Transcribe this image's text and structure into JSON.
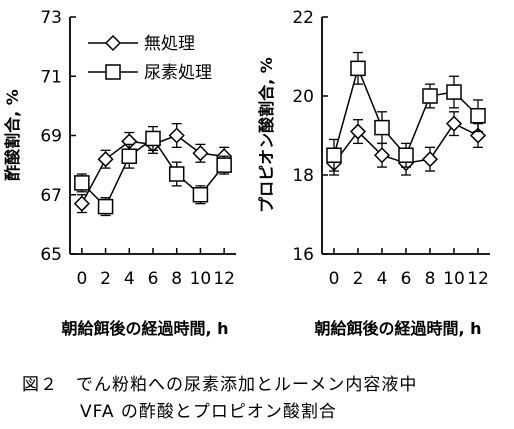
{
  "caption": {
    "line1": "図２　でん粉粕への尿素添加とルーメン内容液中",
    "line2": "VFA の酢酸とプロピオン酸割合"
  },
  "colors": {
    "line": "#000000",
    "marker_fill": "#ffffff"
  },
  "chart_data": [
    {
      "type": "line",
      "title": "",
      "xlabel": "朝給餌後の経過時間, h",
      "ylabel": "酢酸割合, %",
      "x": [
        0,
        2,
        4,
        6,
        8,
        10,
        12
      ],
      "xticks": [
        "0",
        "2",
        "4",
        "6",
        "8",
        "10",
        "12"
      ],
      "ylim": [
        65,
        73
      ],
      "yticks": [
        "65",
        "67",
        "69",
        "71",
        "73"
      ],
      "grid": false,
      "legend": "top-left",
      "series": [
        {
          "name": "無処理",
          "marker": "diamond",
          "values": [
            66.7,
            68.2,
            68.8,
            68.7,
            69.0,
            68.4,
            68.3
          ],
          "errors": [
            0.3,
            0.3,
            0.3,
            0.3,
            0.4,
            0.3,
            0.3
          ]
        },
        {
          "name": "尿素処理",
          "marker": "square",
          "values": [
            67.4,
            66.6,
            68.3,
            68.9,
            67.7,
            67.0,
            68.0
          ],
          "errors": [
            0.3,
            0.3,
            0.4,
            0.4,
            0.4,
            0.3,
            0.3
          ]
        }
      ]
    },
    {
      "type": "line",
      "title": "",
      "xlabel": "朝給餌後の経過時間, h",
      "ylabel": "プロピオン酸割合, %",
      "x": [
        0,
        2,
        4,
        6,
        8,
        10,
        12
      ],
      "xticks": [
        "0",
        "2",
        "4",
        "6",
        "8",
        "10",
        "12"
      ],
      "ylim": [
        16,
        22
      ],
      "yticks": [
        "16",
        "18",
        "20",
        "22"
      ],
      "grid": false,
      "legend": "none",
      "series": [
        {
          "name": "無処理",
          "marker": "diamond",
          "values": [
            18.3,
            19.1,
            18.5,
            18.3,
            18.4,
            19.3,
            19.0
          ],
          "errors": [
            0.3,
            0.3,
            0.3,
            0.3,
            0.3,
            0.3,
            0.3
          ]
        },
        {
          "name": "尿素処理",
          "marker": "square",
          "values": [
            18.5,
            20.7,
            19.2,
            18.5,
            20.0,
            20.1,
            19.5
          ],
          "errors": [
            0.4,
            0.4,
            0.4,
            0.3,
            0.3,
            0.4,
            0.4
          ]
        }
      ]
    }
  ]
}
